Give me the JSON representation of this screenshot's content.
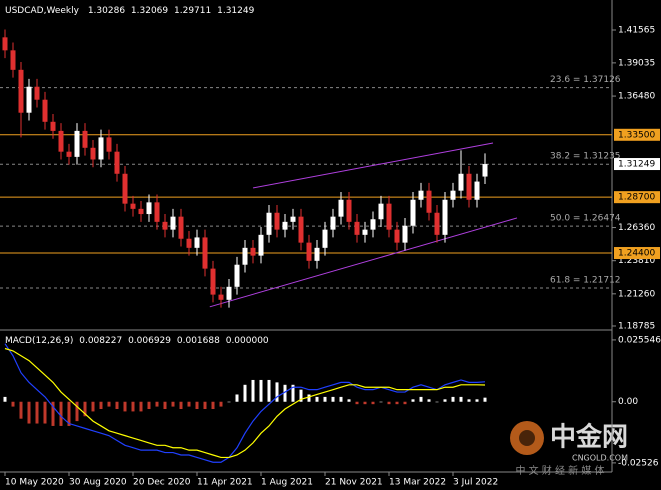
{
  "chart_data": {
    "type": "candlestick",
    "symbol": "USDCAD,Weekly",
    "up_color": "#ffffff",
    "down_color": "#e03030",
    "open": [
      1.41,
      1.4,
      1.385,
      1.352,
      1.372,
      1.362,
      1.345,
      1.338,
      1.322,
      1.318,
      1.338,
      1.325,
      1.316,
      1.333,
      1.322,
      1.305,
      1.282,
      1.278,
      1.274,
      1.283,
      1.268,
      1.262,
      1.272,
      1.255,
      1.248,
      1.256,
      1.232,
      1.212,
      1.208,
      1.218,
      1.235,
      1.248,
      1.242,
      1.258,
      1.275,
      1.262,
      1.268,
      1.272,
      1.252,
      1.238,
      1.248,
      1.262,
      1.272,
      1.285,
      1.268,
      1.258,
      1.262,
      1.27,
      1.282,
      1.262,
      1.252,
      1.265,
      1.285,
      1.292,
      1.275,
      1.258,
      1.285,
      1.292,
      1.305,
      1.285,
      1.30286
    ],
    "high": [
      1.416,
      1.406,
      1.391,
      1.378,
      1.378,
      1.368,
      1.351,
      1.344,
      1.328,
      1.344,
      1.344,
      1.331,
      1.339,
      1.339,
      1.328,
      1.311,
      1.288,
      1.284,
      1.289,
      1.289,
      1.274,
      1.278,
      1.278,
      1.261,
      1.262,
      1.262,
      1.238,
      1.218,
      1.224,
      1.241,
      1.254,
      1.254,
      1.264,
      1.281,
      1.281,
      1.274,
      1.278,
      1.278,
      1.258,
      1.254,
      1.268,
      1.278,
      1.291,
      1.291,
      1.274,
      1.268,
      1.276,
      1.288,
      1.288,
      1.268,
      1.271,
      1.291,
      1.298,
      1.298,
      1.281,
      1.291,
      1.298,
      1.323,
      1.311,
      1.305,
      1.32069
    ],
    "low": [
      1.394,
      1.379,
      1.333,
      1.346,
      1.356,
      1.339,
      1.332,
      1.316,
      1.312,
      1.312,
      1.319,
      1.31,
      1.31,
      1.316,
      1.299,
      1.276,
      1.272,
      1.268,
      1.268,
      1.262,
      1.256,
      1.256,
      1.249,
      1.242,
      1.242,
      1.226,
      1.206,
      1.202,
      1.202,
      1.212,
      1.229,
      1.236,
      1.236,
      1.252,
      1.256,
      1.256,
      1.262,
      1.246,
      1.232,
      1.232,
      1.242,
      1.256,
      1.266,
      1.262,
      1.252,
      1.252,
      1.256,
      1.264,
      1.256,
      1.246,
      1.246,
      1.259,
      1.279,
      1.269,
      1.252,
      1.252,
      1.279,
      1.286,
      1.279,
      1.279,
      1.29711
    ],
    "close": [
      1.4,
      1.385,
      1.352,
      1.372,
      1.362,
      1.345,
      1.338,
      1.322,
      1.318,
      1.338,
      1.325,
      1.316,
      1.333,
      1.322,
      1.305,
      1.282,
      1.278,
      1.274,
      1.283,
      1.268,
      1.262,
      1.272,
      1.255,
      1.248,
      1.256,
      1.232,
      1.212,
      1.208,
      1.218,
      1.235,
      1.248,
      1.242,
      1.258,
      1.275,
      1.262,
      1.268,
      1.272,
      1.252,
      1.238,
      1.248,
      1.262,
      1.272,
      1.285,
      1.268,
      1.258,
      1.262,
      1.27,
      1.282,
      1.262,
      1.252,
      1.265,
      1.285,
      1.292,
      1.275,
      1.258,
      1.285,
      1.292,
      1.305,
      1.285,
      1.299,
      1.31249
    ],
    "xlim": [
      -0.625,
      75.875
    ],
    "xticks": [
      {
        "value": 0,
        "label": "10 May 2020"
      },
      {
        "value": 8,
        "label": "30 Aug 2020"
      },
      {
        "value": 16,
        "label": "20 Dec 2020"
      },
      {
        "value": 24,
        "label": "11 Apr 2021"
      },
      {
        "value": 32,
        "label": "1 Aug 2021"
      },
      {
        "value": 40,
        "label": "21 Nov 2021"
      },
      {
        "value": 48,
        "label": "13 Mar 2022"
      },
      {
        "value": 56,
        "label": "3 Jul 2022"
      }
    ],
    "ylim": [
      1.1863,
      1.4372
    ],
    "yticks": [
      1.41565,
      1.39035,
      {
        "value": 1.3648,
        "label": "1.36480"
      },
      {
        "value": 1.2636,
        "label": "1.26360"
      },
      {
        "value": 1.2381,
        "label": "1.23810"
      },
      {
        "value": 1.2126,
        "label": "1.21260"
      },
      1.18785
    ],
    "hlines": [
      {
        "value": 1.335,
        "label": "1.33500"
      },
      {
        "value": 1.287,
        "label": "1.28700"
      },
      {
        "value": 1.244,
        "label": "1.24400"
      }
    ],
    "hline_color": "#f0a020",
    "fib": [
      {
        "value": 1.37126,
        "label": "23.6 = 1.37126"
      },
      {
        "value": 1.31235,
        "label": "38.2 = 1.31235"
      },
      {
        "value": 1.26474,
        "label": "50.0 = 1.26474"
      },
      {
        "value": 1.21712,
        "label": "61.8 = 1.21712"
      }
    ],
    "trendlines": [
      {
        "x": [
          31,
          61
        ],
        "y": [
          1.2941,
          1.3287
        ]
      },
      {
        "x": [
          25.6,
          64
        ],
        "y": [
          1.2026,
          1.271
        ]
      }
    ],
    "trend_color": "#b040e0",
    "indicator": {
      "name": "MACD(12,26,9)",
      "ylim": [
        -0.0282,
        0.0284
      ],
      "yticks": [
        0.025546,
        {
          "value": 0,
          "label": "0.00"
        },
        -0.02526
      ],
      "hist": [
        0.002,
        -0.002,
        -0.007,
        -0.009,
        -0.009,
        -0.009,
        -0.01,
        -0.01,
        -0.01,
        -0.008,
        -0.006,
        -0.004,
        -0.003,
        -0.002,
        -0.003,
        -0.004,
        -0.004,
        -0.004,
        -0.003,
        -0.002,
        -0.003,
        -0.002,
        -0.003,
        -0.002,
        -0.003,
        -0.003,
        -0.003,
        -0.002,
        0.0,
        0.003,
        0.007,
        0.009,
        0.009,
        0.009,
        0.008,
        0.007,
        0.007,
        0.005,
        0.003,
        0.002,
        0.002,
        0.002,
        0.002,
        0.001,
        -0.001,
        -0.001,
        -0.001,
        0.0,
        -0.001,
        -0.001,
        -0.001,
        0.001,
        0.002,
        0.001,
        0.0,
        0.001,
        0.002,
        0.002,
        0.001,
        0.001,
        0.001688
      ],
      "macd": [
        0.024,
        0.019,
        0.012,
        0.008,
        0.005,
        0.002,
        -0.002,
        -0.006,
        -0.009,
        -0.01,
        -0.011,
        -0.012,
        -0.013,
        -0.014,
        -0.016,
        -0.018,
        -0.019,
        -0.02,
        -0.02,
        -0.02,
        -0.021,
        -0.021,
        -0.022,
        -0.022,
        -0.023,
        -0.024,
        -0.025,
        -0.025,
        -0.023,
        -0.019,
        -0.013,
        -0.008,
        -0.004,
        -0.001,
        0.002,
        0.004,
        0.006,
        0.006,
        0.005,
        0.005,
        0.006,
        0.007,
        0.008,
        0.008,
        0.006,
        0.005,
        0.005,
        0.006,
        0.005,
        0.004,
        0.004,
        0.006,
        0.007,
        0.006,
        0.005,
        0.007,
        0.008,
        0.009,
        0.008,
        0.008,
        0.008227
      ],
      "signal": [
        0.022,
        0.021,
        0.019,
        0.017,
        0.014,
        0.011,
        0.008,
        0.004,
        0.001,
        -0.002,
        -0.005,
        -0.008,
        -0.01,
        -0.012,
        -0.013,
        -0.014,
        -0.015,
        -0.016,
        -0.017,
        -0.018,
        -0.018,
        -0.019,
        -0.019,
        -0.02,
        -0.02,
        -0.021,
        -0.022,
        -0.023,
        -0.023,
        -0.022,
        -0.02,
        -0.017,
        -0.013,
        -0.01,
        -0.006,
        -0.003,
        -0.001,
        0.001,
        0.002,
        0.003,
        0.004,
        0.005,
        0.006,
        0.007,
        0.007,
        0.006,
        0.006,
        0.006,
        0.006,
        0.005,
        0.005,
        0.005,
        0.005,
        0.005,
        0.005,
        0.006,
        0.006,
        0.007,
        0.007,
        0.007,
        0.006929
      ],
      "extra_readout": {
        "value": 0,
        "label": "0.000000"
      },
      "hist_up_color": "#ffffff",
      "hist_down_color": "#c0392b",
      "macd_color": "#2040ff",
      "signal_color": "#ffff00"
    },
    "watermark": {
      "logo": "中金网",
      "site": "CNGOLD.COM",
      "tagline": "中 文 财 经 新 媒 体"
    }
  }
}
